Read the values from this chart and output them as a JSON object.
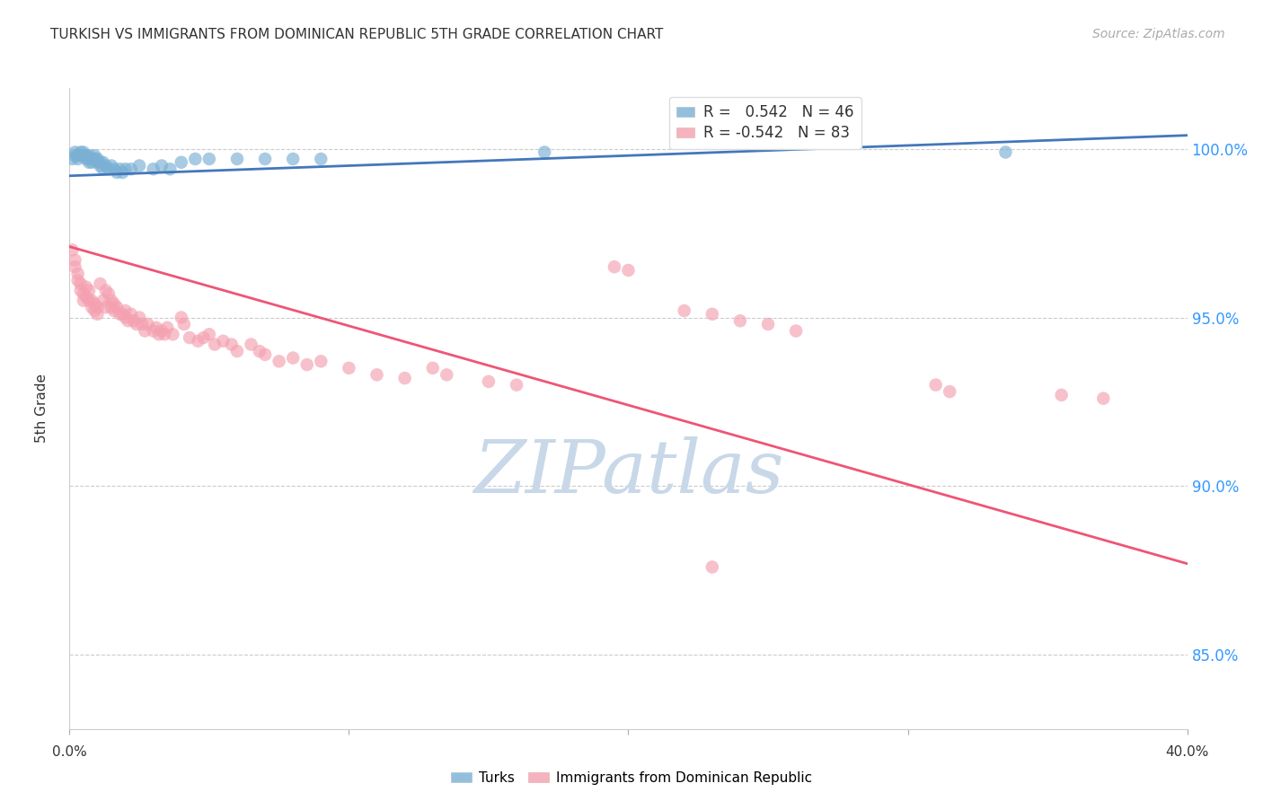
{
  "title": "TURKISH VS IMMIGRANTS FROM DOMINICAN REPUBLIC 5TH GRADE CORRELATION CHART",
  "source": "Source: ZipAtlas.com",
  "ylabel": "5th Grade",
  "ytick_labels": [
    "85.0%",
    "90.0%",
    "95.0%",
    "100.0%"
  ],
  "ytick_values": [
    0.85,
    0.9,
    0.95,
    1.0
  ],
  "xlim": [
    0.0,
    0.4
  ],
  "ylim": [
    0.828,
    1.018
  ],
  "legend_blue_label": "R =   0.542   N = 46",
  "legend_pink_label": "R = -0.542   N = 83",
  "blue_scatter_color": "#7AB0D4",
  "pink_scatter_color": "#F4A0B0",
  "blue_line_color": "#4477BB",
  "pink_line_color": "#EE5577",
  "grid_color": "#CCCCCC",
  "title_color": "#333333",
  "right_tick_color": "#3399FF",
  "watermark_color": "#C8D8E8",
  "blue_scatter": [
    [
      0.001,
      0.997
    ],
    [
      0.002,
      0.999
    ],
    [
      0.002,
      0.998
    ],
    [
      0.003,
      0.998
    ],
    [
      0.003,
      0.997
    ],
    [
      0.004,
      0.999
    ],
    [
      0.004,
      0.998
    ],
    [
      0.005,
      0.999
    ],
    [
      0.005,
      0.998
    ],
    [
      0.006,
      0.997
    ],
    [
      0.006,
      0.998
    ],
    [
      0.007,
      0.996
    ],
    [
      0.007,
      0.997
    ],
    [
      0.007,
      0.998
    ],
    [
      0.008,
      0.996
    ],
    [
      0.008,
      0.997
    ],
    [
      0.009,
      0.997
    ],
    [
      0.009,
      0.998
    ],
    [
      0.01,
      0.996
    ],
    [
      0.01,
      0.997
    ],
    [
      0.011,
      0.996
    ],
    [
      0.011,
      0.995
    ],
    [
      0.012,
      0.994
    ],
    [
      0.012,
      0.996
    ],
    [
      0.013,
      0.995
    ],
    [
      0.014,
      0.994
    ],
    [
      0.015,
      0.995
    ],
    [
      0.016,
      0.994
    ],
    [
      0.017,
      0.993
    ],
    [
      0.018,
      0.994
    ],
    [
      0.019,
      0.993
    ],
    [
      0.02,
      0.994
    ],
    [
      0.022,
      0.994
    ],
    [
      0.025,
      0.995
    ],
    [
      0.03,
      0.994
    ],
    [
      0.033,
      0.995
    ],
    [
      0.036,
      0.994
    ],
    [
      0.04,
      0.996
    ],
    [
      0.045,
      0.997
    ],
    [
      0.05,
      0.997
    ],
    [
      0.06,
      0.997
    ],
    [
      0.07,
      0.997
    ],
    [
      0.08,
      0.997
    ],
    [
      0.09,
      0.997
    ],
    [
      0.17,
      0.999
    ],
    [
      0.335,
      0.999
    ]
  ],
  "pink_scatter": [
    [
      0.001,
      0.97
    ],
    [
      0.002,
      0.967
    ],
    [
      0.002,
      0.965
    ],
    [
      0.003,
      0.963
    ],
    [
      0.003,
      0.961
    ],
    [
      0.004,
      0.96
    ],
    [
      0.004,
      0.958
    ],
    [
      0.005,
      0.957
    ],
    [
      0.005,
      0.955
    ],
    [
      0.006,
      0.959
    ],
    [
      0.006,
      0.956
    ],
    [
      0.007,
      0.958
    ],
    [
      0.007,
      0.955
    ],
    [
      0.008,
      0.955
    ],
    [
      0.008,
      0.953
    ],
    [
      0.009,
      0.954
    ],
    [
      0.009,
      0.952
    ],
    [
      0.01,
      0.953
    ],
    [
      0.01,
      0.951
    ],
    [
      0.011,
      0.96
    ],
    [
      0.012,
      0.955
    ],
    [
      0.013,
      0.958
    ],
    [
      0.013,
      0.953
    ],
    [
      0.014,
      0.957
    ],
    [
      0.015,
      0.955
    ],
    [
      0.015,
      0.953
    ],
    [
      0.016,
      0.954
    ],
    [
      0.016,
      0.952
    ],
    [
      0.017,
      0.953
    ],
    [
      0.018,
      0.951
    ],
    [
      0.019,
      0.951
    ],
    [
      0.02,
      0.952
    ],
    [
      0.02,
      0.95
    ],
    [
      0.021,
      0.949
    ],
    [
      0.022,
      0.951
    ],
    [
      0.023,
      0.949
    ],
    [
      0.024,
      0.948
    ],
    [
      0.025,
      0.95
    ],
    [
      0.026,
      0.948
    ],
    [
      0.027,
      0.946
    ],
    [
      0.028,
      0.948
    ],
    [
      0.03,
      0.946
    ],
    [
      0.031,
      0.947
    ],
    [
      0.032,
      0.945
    ],
    [
      0.033,
      0.946
    ],
    [
      0.034,
      0.945
    ],
    [
      0.035,
      0.947
    ],
    [
      0.037,
      0.945
    ],
    [
      0.04,
      0.95
    ],
    [
      0.041,
      0.948
    ],
    [
      0.043,
      0.944
    ],
    [
      0.046,
      0.943
    ],
    [
      0.048,
      0.944
    ],
    [
      0.05,
      0.945
    ],
    [
      0.052,
      0.942
    ],
    [
      0.055,
      0.943
    ],
    [
      0.058,
      0.942
    ],
    [
      0.06,
      0.94
    ],
    [
      0.065,
      0.942
    ],
    [
      0.068,
      0.94
    ],
    [
      0.07,
      0.939
    ],
    [
      0.075,
      0.937
    ],
    [
      0.08,
      0.938
    ],
    [
      0.085,
      0.936
    ],
    [
      0.09,
      0.937
    ],
    [
      0.1,
      0.935
    ],
    [
      0.11,
      0.933
    ],
    [
      0.12,
      0.932
    ],
    [
      0.13,
      0.935
    ],
    [
      0.135,
      0.933
    ],
    [
      0.15,
      0.931
    ],
    [
      0.16,
      0.93
    ],
    [
      0.195,
      0.965
    ],
    [
      0.2,
      0.964
    ],
    [
      0.22,
      0.952
    ],
    [
      0.23,
      0.951
    ],
    [
      0.24,
      0.949
    ],
    [
      0.25,
      0.948
    ],
    [
      0.26,
      0.946
    ],
    [
      0.31,
      0.93
    ],
    [
      0.315,
      0.928
    ],
    [
      0.355,
      0.927
    ],
    [
      0.37,
      0.926
    ],
    [
      0.23,
      0.876
    ]
  ],
  "blue_line": [
    [
      0.0,
      0.992
    ],
    [
      0.4,
      1.004
    ]
  ],
  "pink_line": [
    [
      0.0,
      0.971
    ],
    [
      0.4,
      0.877
    ]
  ]
}
